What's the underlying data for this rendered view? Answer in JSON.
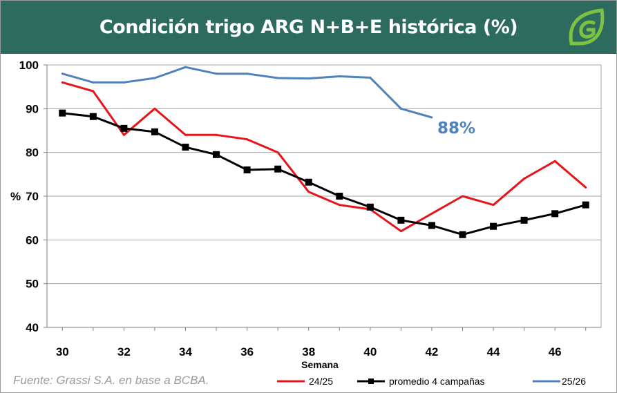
{
  "header": {
    "title": "Condición trigo ARG N+B+E histórica (%)",
    "logo_icon": "leaf-g-logo-icon"
  },
  "source": "Fuente: Grassi S.A. en base a BCBA.",
  "annotation": {
    "text": "88%",
    "color": "#4f81bd"
  },
  "colors": {
    "header_bg": "#2e6b5f",
    "grid": "#a6a6a6"
  },
  "chart_data": {
    "type": "line",
    "title": "Condición trigo ARG N+B+E histórica (%)",
    "xlabel": "Semana",
    "ylabel": "%",
    "xlim": [
      29.5,
      47.5
    ],
    "ylim": [
      40,
      100
    ],
    "xticks": [
      30,
      32,
      34,
      36,
      38,
      40,
      42,
      44,
      46
    ],
    "yticks": [
      40,
      50,
      60,
      70,
      80,
      90,
      100
    ],
    "grid": true,
    "legend_position": "bottom",
    "series": [
      {
        "name": "24/25",
        "color": "#e8141b",
        "marker": "none",
        "x": [
          30,
          31,
          32,
          33,
          34,
          35,
          36,
          37,
          38,
          39,
          40,
          41,
          42,
          43,
          44,
          45,
          46,
          47
        ],
        "values": [
          96,
          94,
          84,
          90,
          84,
          84,
          83,
          80,
          71,
          68,
          67,
          62,
          66,
          70,
          68,
          74,
          78,
          72
        ]
      },
      {
        "name": "promedio 4 campañas",
        "color": "#000000",
        "marker": "square",
        "x": [
          30,
          31,
          32,
          33,
          34,
          35,
          36,
          37,
          38,
          39,
          40,
          41,
          42,
          43,
          44,
          45,
          46,
          47
        ],
        "values": [
          89,
          88.2,
          85.5,
          84.7,
          81.2,
          79.5,
          76,
          76.2,
          73.2,
          70,
          67.5,
          64.5,
          63.3,
          61.2,
          63.1,
          64.5,
          66,
          68
        ]
      },
      {
        "name": "25/26",
        "color": "#4f81bd",
        "marker": "none",
        "x": [
          30,
          31,
          32,
          33,
          34,
          35,
          36,
          37,
          38,
          39,
          40,
          41,
          42
        ],
        "values": [
          98,
          96,
          96,
          97,
          99.5,
          98,
          98,
          97,
          96.9,
          97.4,
          97.1,
          90,
          88
        ]
      }
    ]
  }
}
